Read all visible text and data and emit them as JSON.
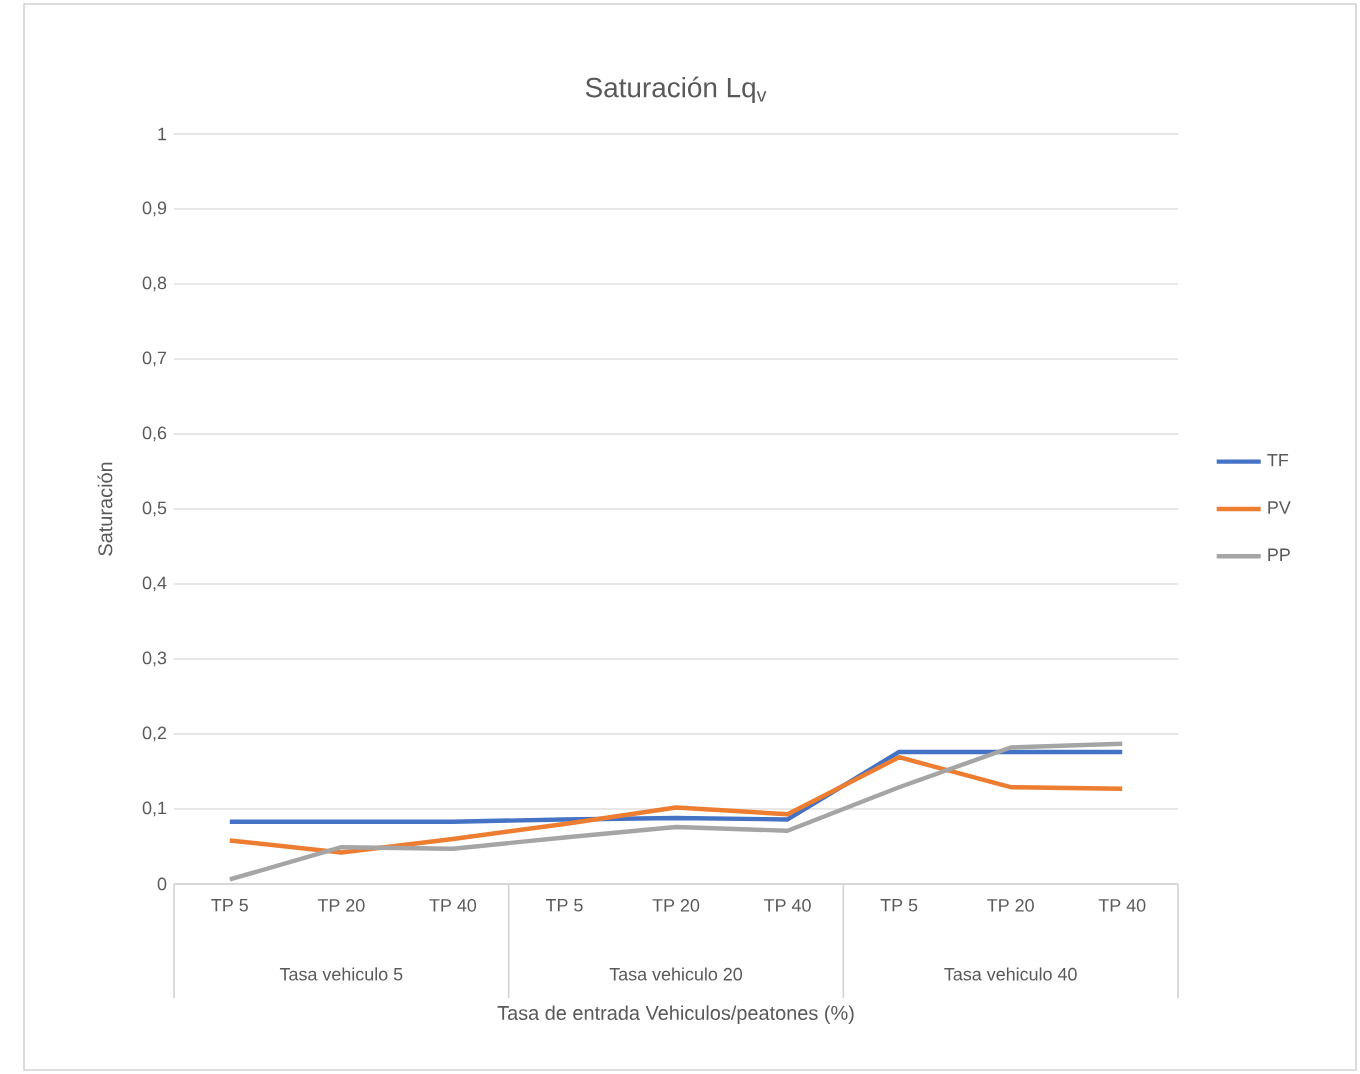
{
  "chart_data": {
    "type": "line",
    "title": "Saturación Lq$_{v}$",
    "xlabel": "Tasa de entrada Vehiculos/peatones (%)",
    "ylabel": "Saturación",
    "categories": [
      "TP 5",
      "TP 20",
      "TP 40",
      "TP 5",
      "TP 20",
      "TP 40",
      "TP 5",
      "TP 20",
      "TP 40"
    ],
    "annotations": [
      "Tasa vehiculo 5",
      "Tasa vehiculo 20",
      "Tasa vehiculo 40"
    ],
    "series": [
      {
        "name": "TF",
        "color": "#4472c4",
        "values": [
          0.083,
          0.083,
          0.083,
          0.086,
          0.088,
          0.086,
          0.176,
          0.176,
          0.176
        ]
      },
      {
        "name": "PV",
        "color": "#ed7d31",
        "values": [
          0.058,
          0.042,
          0.06,
          0.08,
          0.102,
          0.093,
          0.169,
          0.129,
          0.127
        ]
      },
      {
        "name": "PP",
        "color": "#a5a5a5",
        "values": [
          0.006,
          0.049,
          0.047,
          0.062,
          0.076,
          0.071,
          0.129,
          0.182,
          0.187
        ]
      }
    ],
    "ylim": [
      0,
      1
    ],
    "yticks": [
      0,
      {
        "value": 0.1,
        "label": "0,1"
      },
      {
        "value": 0.2,
        "label": "0,2"
      },
      {
        "value": 0.3,
        "label": "0,3"
      },
      {
        "value": 0.4,
        "label": "0,4"
      },
      {
        "value": 0.5,
        "label": "0,5"
      },
      {
        "value": 0.6,
        "label": "0,6"
      },
      {
        "value": 0.7,
        "label": "0,7"
      },
      {
        "value": 0.8,
        "label": "0,8"
      },
      {
        "value": 0.9,
        "label": "0,9"
      },
      1
    ],
    "grid": "y",
    "legend": "right",
    "marker": "none",
    "line_style": "solid"
  }
}
